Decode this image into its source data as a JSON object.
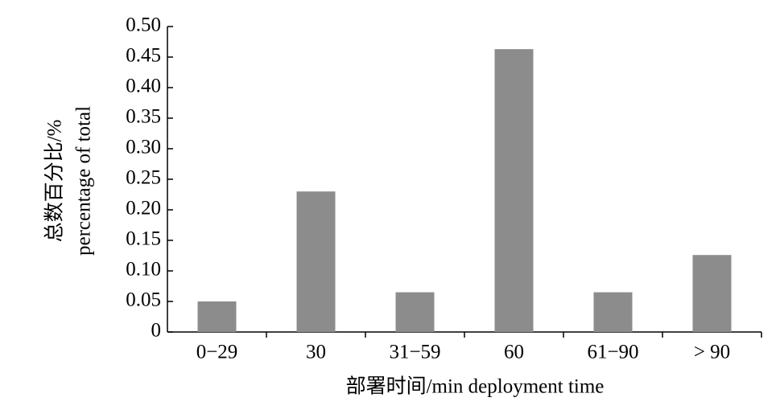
{
  "chart_data": {
    "type": "bar",
    "y_label": [
      "总数百分比/%",
      "percentage of total"
    ],
    "x_label": "部署时间/min deployment time",
    "categories": [
      "0−29",
      "30",
      "31−59",
      "60",
      "61−90",
      "> 90"
    ],
    "values": [
      0.05,
      0.23,
      0.065,
      0.463,
      0.065,
      0.126
    ],
    "color": "#8c8c8c",
    "ylim": [
      0,
      0.5
    ],
    "yticks": [
      0,
      0.05,
      {
        "value": 0.1,
        "label": "0.10"
      },
      0.15,
      {
        "value": 0.2,
        "label": "0.20"
      },
      0.25,
      {
        "value": 0.3,
        "label": "0.30"
      },
      0.35,
      {
        "value": 0.4,
        "label": "0.40"
      },
      0.45,
      {
        "value": 0.5,
        "label": "0.50"
      }
    ],
    "grid": false
  }
}
